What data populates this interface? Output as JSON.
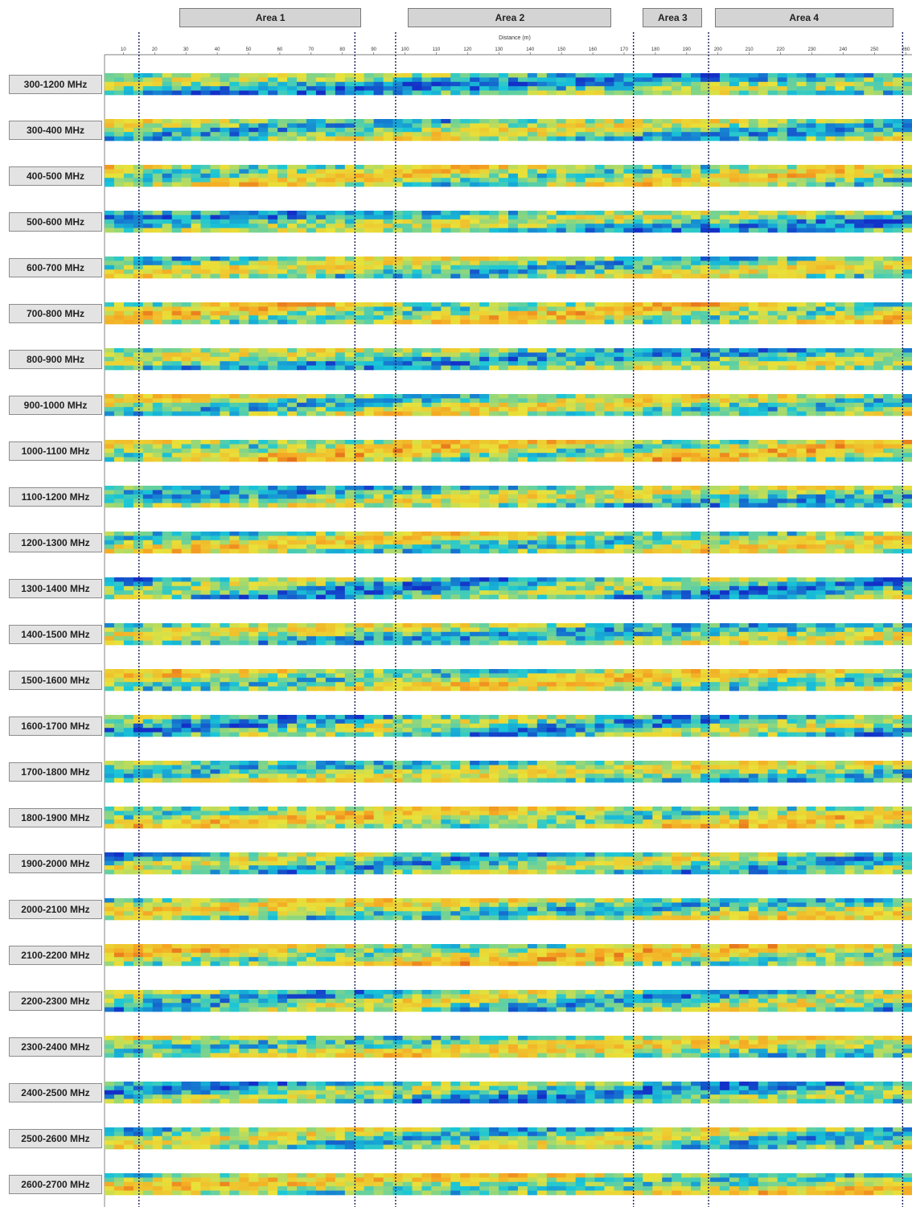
{
  "areas": [
    {
      "label": "Area 1",
      "x0": 28,
      "x1": 86
    },
    {
      "label": "Area 2",
      "x0": 101,
      "x1": 166
    },
    {
      "label": "Area 3",
      "x0": 176,
      "x1": 195
    },
    {
      "label": "Area 4",
      "x0": 199,
      "x1": 256
    }
  ],
  "chart_data": {
    "type": "heatmap",
    "xlabel": "Distance (m)",
    "xlim": [
      4,
      262
    ],
    "xticks": [
      10,
      20,
      30,
      40,
      50,
      60,
      70,
      80,
      90,
      100,
      110,
      120,
      130,
      140,
      150,
      160,
      170,
      180,
      190,
      200,
      210,
      220,
      230,
      240,
      250,
      260
    ],
    "boundary_lines": [
      15,
      84,
      97,
      173,
      197,
      259
    ],
    "colors": {
      "low": "#1330c8",
      "mid_low": "#19c6d8",
      "mid": "#e8e23a",
      "mid_high": "#f5a623",
      "high": "#c8140f"
    },
    "panels": [
      {
        "label": "300-1200 MHz"
      },
      {
        "label": "300-400 MHz"
      },
      {
        "label": "400-500 MHz"
      },
      {
        "label": "500-600 MHz"
      },
      {
        "label": "600-700 MHz"
      },
      {
        "label": "700-800 MHz"
      },
      {
        "label": "800-900 MHz"
      },
      {
        "label": "900-1000 MHz"
      },
      {
        "label": "1000-1100 MHz"
      },
      {
        "label": "1100-1200 MHz"
      },
      {
        "label": "1200-1300 MHz"
      },
      {
        "label": "1300-1400 MHz"
      },
      {
        "label": "1400-1500 MHz"
      },
      {
        "label": "1500-1600 MHz"
      },
      {
        "label": "1600-1700 MHz"
      },
      {
        "label": "1700-1800 MHz"
      },
      {
        "label": "1800-1900 MHz"
      },
      {
        "label": "1900-2000 MHz"
      },
      {
        "label": "2000-2100 MHz"
      },
      {
        "label": "2100-2200 MHz"
      },
      {
        "label": "2200-2300 MHz"
      },
      {
        "label": "2300-2400 MHz"
      },
      {
        "label": "2400-2500 MHz"
      },
      {
        "label": "2500-2600 MHz"
      },
      {
        "label": "2600-2700 MHz"
      }
    ]
  }
}
